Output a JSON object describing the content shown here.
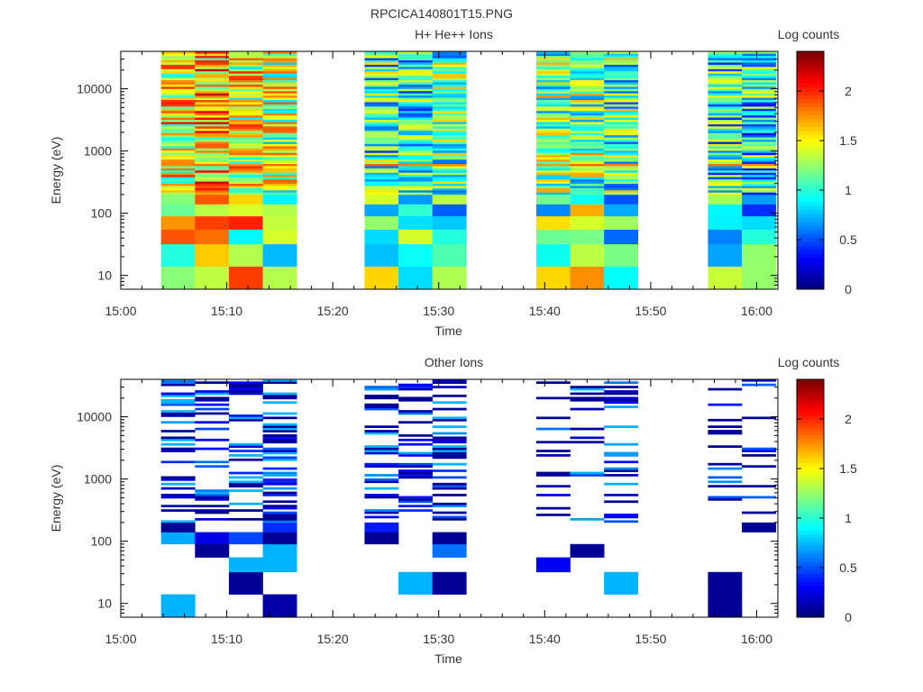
{
  "page": {
    "title": "RPCICA140801T15.PNG"
  },
  "chart_data": [
    {
      "type": "heatmap",
      "title": "H+ He++ Ions",
      "xlabel": "Time",
      "ylabel": "Energy (eV)",
      "colorbar_label": "Log counts",
      "x_ticks": [
        "15:00",
        "15:10",
        "15:20",
        "15:30",
        "15:40",
        "15:50",
        "16:00"
      ],
      "x_range_minutes": [
        0,
        62
      ],
      "y_scale": "log",
      "y_ticks": [
        "10",
        "100",
        "1000",
        "10000"
      ],
      "y_range": [
        6,
        40000
      ],
      "colorbar_ticks": [
        "0",
        "0.5",
        "1",
        "1.5",
        "2"
      ],
      "colorbar_range": [
        0,
        2.4
      ],
      "colormap": "jet",
      "seed": 11,
      "strong_band_energy": 620,
      "columns": [
        {
          "start": 3.8,
          "end": 7.0,
          "density": 1.0,
          "level": 0.62
        },
        {
          "start": 7.0,
          "end": 10.2,
          "density": 1.0,
          "level": 0.68
        },
        {
          "start": 10.2,
          "end": 13.4,
          "density": 1.0,
          "level": 0.6
        },
        {
          "start": 13.4,
          "end": 16.6,
          "density": 1.0,
          "level": 0.55
        },
        {
          "start": 23.0,
          "end": 26.2,
          "density": 1.0,
          "level": 0.42
        },
        {
          "start": 26.2,
          "end": 29.4,
          "density": 1.0,
          "level": 0.4
        },
        {
          "start": 29.4,
          "end": 32.6,
          "density": 1.0,
          "level": 0.45
        },
        {
          "start": 39.2,
          "end": 42.4,
          "density": 1.0,
          "level": 0.48
        },
        {
          "start": 42.4,
          "end": 45.6,
          "density": 1.0,
          "level": 0.5
        },
        {
          "start": 45.6,
          "end": 48.8,
          "density": 1.0,
          "level": 0.45
        },
        {
          "start": 55.4,
          "end": 58.6,
          "density": 1.0,
          "level": 0.4
        },
        {
          "start": 58.6,
          "end": 61.8,
          "density": 1.0,
          "level": 0.38
        }
      ]
    },
    {
      "type": "heatmap",
      "title": "Other Ions",
      "xlabel": "Time",
      "ylabel": "Energy (eV)",
      "colorbar_label": "Log counts",
      "x_ticks": [
        "15:00",
        "15:10",
        "15:20",
        "15:30",
        "15:40",
        "15:50",
        "16:00"
      ],
      "x_range_minutes": [
        0,
        62
      ],
      "y_scale": "log",
      "y_ticks": [
        "10",
        "100",
        "1000",
        "10000"
      ],
      "y_range": [
        6,
        40000
      ],
      "colorbar_ticks": [
        "0",
        "0.5",
        "1",
        "1.5",
        "2"
      ],
      "colorbar_range": [
        0,
        2.4
      ],
      "colormap": "jet",
      "seed": 29,
      "strong_band_energy": null,
      "columns": [
        {
          "start": 3.8,
          "end": 7.0,
          "density": 0.45,
          "level": 0.12
        },
        {
          "start": 7.0,
          "end": 10.2,
          "density": 0.5,
          "level": 0.1
        },
        {
          "start": 10.2,
          "end": 13.4,
          "density": 0.4,
          "level": 0.12
        },
        {
          "start": 13.4,
          "end": 16.6,
          "density": 0.55,
          "level": 0.15
        },
        {
          "start": 23.0,
          "end": 26.2,
          "density": 0.4,
          "level": 0.1
        },
        {
          "start": 26.2,
          "end": 29.4,
          "density": 0.45,
          "level": 0.08
        },
        {
          "start": 29.4,
          "end": 32.6,
          "density": 0.35,
          "level": 0.12
        },
        {
          "start": 39.2,
          "end": 42.4,
          "density": 0.25,
          "level": 0.06
        },
        {
          "start": 42.4,
          "end": 45.6,
          "density": 0.2,
          "level": 0.07
        },
        {
          "start": 45.6,
          "end": 48.8,
          "density": 0.28,
          "level": 0.1
        },
        {
          "start": 55.4,
          "end": 58.6,
          "density": 0.15,
          "level": 0.06
        },
        {
          "start": 58.6,
          "end": 61.8,
          "density": 0.18,
          "level": 0.07
        }
      ]
    }
  ]
}
